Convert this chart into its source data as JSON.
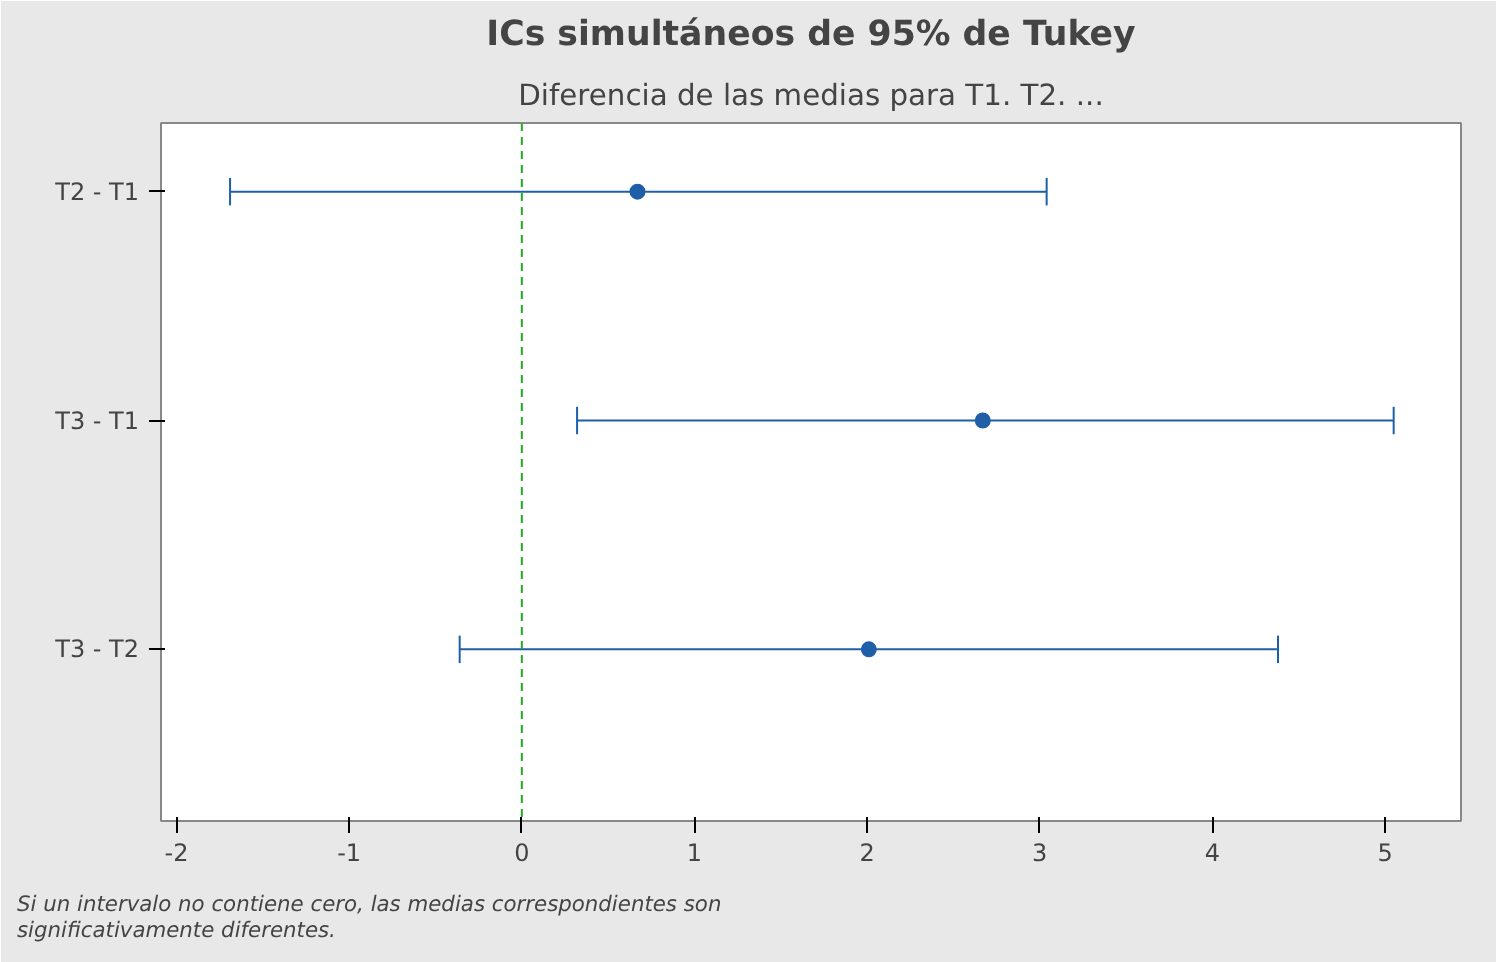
{
  "chart_data": {
    "type": "scatter",
    "orientation": "horizontal",
    "title": "ICs simultáneos de 95% de Tukey",
    "subtitle": "Diferencia de las medias para T1. T2. ...",
    "categories": [
      "T2 - T1",
      "T3 - T1",
      "T3 - T2"
    ],
    "values": [
      0.67,
      2.67,
      2.01
    ],
    "errors": [
      [
        -1.69,
        3.04
      ],
      [
        0.32,
        5.05
      ],
      [
        -0.36,
        4.38
      ]
    ],
    "color": "#1f5fa8",
    "marker": "circle",
    "xlim": [
      -2.09,
      5.44
    ],
    "xticks": [
      -2,
      -1,
      0,
      1,
      2,
      3,
      4,
      5
    ],
    "ref_lines": [
      {
        "axis": "x",
        "value": 0,
        "color": "#22aa22",
        "line_style": "dashed"
      }
    ],
    "grid": false,
    "annotations": [
      "Si un intervalo no contiene cero, las medias correspondientes son significativamente diferentes."
    ]
  }
}
